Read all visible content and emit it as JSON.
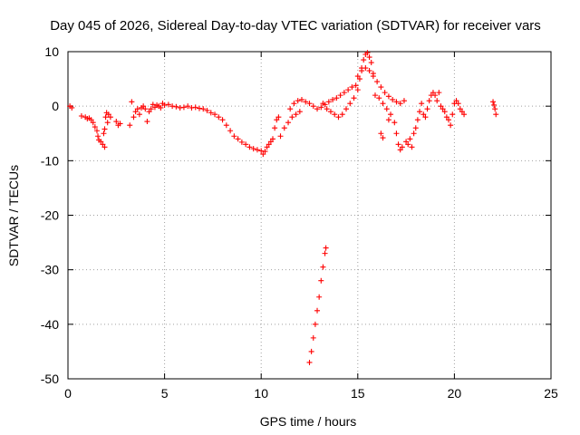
{
  "chart_data": {
    "type": "scatter",
    "title": "Day 045 of 2026, Sidereal Day-to-day VTEC variation (SDTVAR) for receiver vars",
    "xlabel": "GPS time / hours",
    "ylabel": "SDTVAR / TECUs",
    "xlim": [
      0,
      25
    ],
    "ylim": [
      -50,
      10
    ],
    "x_ticks": [
      0,
      5,
      10,
      15,
      20,
      25
    ],
    "y_ticks": [
      10,
      0,
      -10,
      -20,
      -30,
      -40,
      -50
    ],
    "x_tick_labels": [
      "0",
      "5",
      "10",
      "15",
      "20",
      "25"
    ],
    "y_tick_labels": [
      "10",
      "0",
      "-10",
      "-20",
      "-30",
      "-40",
      "-50"
    ],
    "grid": true,
    "marker": "plus",
    "series": [
      {
        "name": "SDTVAR",
        "color": "#ff0000",
        "points": [
          [
            0.1,
            0.0
          ],
          [
            0.2,
            -0.3
          ],
          [
            0.7,
            -1.8
          ],
          [
            0.9,
            -2.0
          ],
          [
            1.0,
            -2.3
          ],
          [
            1.1,
            -2.2
          ],
          [
            1.2,
            -2.5
          ],
          [
            1.3,
            -3.0
          ],
          [
            1.4,
            -3.8
          ],
          [
            1.5,
            -4.5
          ],
          [
            1.55,
            -5.5
          ],
          [
            1.6,
            -6.2
          ],
          [
            1.7,
            -6.5
          ],
          [
            1.8,
            -7.0
          ],
          [
            1.85,
            -5.0
          ],
          [
            1.9,
            -4.2
          ],
          [
            1.9,
            -7.5
          ],
          [
            1.95,
            -2.0
          ],
          [
            2.0,
            -1.2
          ],
          [
            2.05,
            -3.0
          ],
          [
            2.1,
            -1.5
          ],
          [
            2.2,
            -2.0
          ],
          [
            2.5,
            -2.8
          ],
          [
            2.6,
            -3.5
          ],
          [
            2.7,
            -3.2
          ],
          [
            3.2,
            -3.5
          ],
          [
            3.3,
            0.8
          ],
          [
            3.4,
            -2.0
          ],
          [
            3.5,
            -1.0
          ],
          [
            3.6,
            -0.5
          ],
          [
            3.7,
            -1.5
          ],
          [
            3.8,
            -0.3
          ],
          [
            3.9,
            0.0
          ],
          [
            4.0,
            -0.5
          ],
          [
            4.1,
            -2.8
          ],
          [
            4.2,
            -1.0
          ],
          [
            4.3,
            -0.5
          ],
          [
            4.4,
            0.3
          ],
          [
            4.5,
            -0.2
          ],
          [
            4.6,
            0.2
          ],
          [
            4.7,
            0.0
          ],
          [
            4.8,
            -0.3
          ],
          [
            4.9,
            0.5
          ],
          [
            5.0,
            0.2
          ],
          [
            5.2,
            0.3
          ],
          [
            5.4,
            0.0
          ],
          [
            5.6,
            -0.1
          ],
          [
            5.8,
            -0.3
          ],
          [
            6.0,
            -0.2
          ],
          [
            6.2,
            0.0
          ],
          [
            6.4,
            -0.3
          ],
          [
            6.6,
            -0.2
          ],
          [
            6.8,
            -0.4
          ],
          [
            7.0,
            -0.5
          ],
          [
            7.2,
            -0.8
          ],
          [
            7.4,
            -1.2
          ],
          [
            7.6,
            -1.5
          ],
          [
            7.8,
            -2.0
          ],
          [
            8.0,
            -2.5
          ],
          [
            8.2,
            -3.5
          ],
          [
            8.4,
            -4.5
          ],
          [
            8.6,
            -5.5
          ],
          [
            8.8,
            -6.0
          ],
          [
            9.0,
            -6.6
          ],
          [
            9.2,
            -7.0
          ],
          [
            9.4,
            -7.5
          ],
          [
            9.6,
            -7.8
          ],
          [
            9.8,
            -8.0
          ],
          [
            10.0,
            -8.2
          ],
          [
            10.1,
            -8.8
          ],
          [
            10.2,
            -8.3
          ],
          [
            10.3,
            -7.5
          ],
          [
            10.4,
            -7.0
          ],
          [
            10.5,
            -6.5
          ],
          [
            10.6,
            -6.0
          ],
          [
            10.7,
            -4.0
          ],
          [
            10.8,
            -2.5
          ],
          [
            10.9,
            -2.0
          ],
          [
            11.0,
            -5.5
          ],
          [
            11.2,
            -4.0
          ],
          [
            11.4,
            -3.0
          ],
          [
            11.6,
            -2.0
          ],
          [
            11.8,
            -1.5
          ],
          [
            12.0,
            -1.0
          ],
          [
            11.5,
            -0.5
          ],
          [
            11.7,
            0.5
          ],
          [
            11.9,
            1.0
          ],
          [
            12.1,
            1.2
          ],
          [
            12.3,
            0.8
          ],
          [
            12.5,
            0.5
          ],
          [
            12.7,
            0.0
          ],
          [
            12.9,
            -0.5
          ],
          [
            13.1,
            -0.2
          ],
          [
            13.3,
            0.3
          ],
          [
            13.5,
            0.8
          ],
          [
            13.7,
            1.2
          ],
          [
            13.9,
            1.5
          ],
          [
            14.1,
            2.0
          ],
          [
            14.3,
            2.5
          ],
          [
            14.5,
            3.0
          ],
          [
            14.7,
            3.5
          ],
          [
            14.9,
            3.8
          ],
          [
            13.2,
            0.5
          ],
          [
            13.4,
            -0.5
          ],
          [
            13.6,
            -1.0
          ],
          [
            13.8,
            -1.5
          ],
          [
            14.0,
            -2.0
          ],
          [
            14.2,
            -1.5
          ],
          [
            14.4,
            -0.5
          ],
          [
            14.6,
            0.5
          ],
          [
            14.8,
            1.5
          ],
          [
            15.0,
            3.0
          ],
          [
            15.1,
            5.0
          ],
          [
            15.2,
            7.0
          ],
          [
            15.3,
            8.5
          ],
          [
            15.4,
            9.5
          ],
          [
            15.5,
            9.8
          ],
          [
            15.6,
            9.0
          ],
          [
            15.7,
            8.0
          ],
          [
            15.8,
            6.0
          ],
          [
            15.0,
            5.5
          ],
          [
            15.2,
            6.5
          ],
          [
            15.4,
            7.0
          ],
          [
            15.6,
            6.5
          ],
          [
            15.8,
            5.5
          ],
          [
            16.0,
            4.5
          ],
          [
            16.2,
            3.5
          ],
          [
            16.4,
            2.5
          ],
          [
            16.6,
            1.8
          ],
          [
            16.8,
            1.2
          ],
          [
            17.0,
            0.8
          ],
          [
            17.2,
            0.5
          ],
          [
            17.4,
            1.0
          ],
          [
            15.9,
            2.0
          ],
          [
            16.1,
            1.5
          ],
          [
            16.3,
            0.5
          ],
          [
            16.5,
            -0.5
          ],
          [
            16.7,
            -1.5
          ],
          [
            16.9,
            -3.0
          ],
          [
            17.0,
            -5.0
          ],
          [
            17.1,
            -7.0
          ],
          [
            17.2,
            -8.0
          ],
          [
            17.3,
            -7.5
          ],
          [
            17.5,
            -6.5
          ],
          [
            16.2,
            -5.0
          ],
          [
            16.3,
            -5.8
          ],
          [
            16.6,
            -2.5
          ],
          [
            17.6,
            -7.0
          ],
          [
            17.7,
            -6.0
          ],
          [
            17.8,
            -7.5
          ],
          [
            17.9,
            -5.0
          ],
          [
            18.0,
            -4.0
          ],
          [
            18.1,
            -2.5
          ],
          [
            18.2,
            -1.0
          ],
          [
            18.3,
            0.5
          ],
          [
            18.4,
            -1.5
          ],
          [
            18.5,
            -2.0
          ],
          [
            18.6,
            -0.5
          ],
          [
            18.7,
            1.0
          ],
          [
            18.8,
            2.0
          ],
          [
            18.9,
            2.5
          ],
          [
            19.0,
            2.0
          ],
          [
            19.1,
            1.0
          ],
          [
            19.2,
            2.5
          ],
          [
            19.3,
            0.0
          ],
          [
            19.4,
            -0.5
          ],
          [
            19.5,
            -1.0
          ],
          [
            19.6,
            -2.0
          ],
          [
            19.7,
            -2.5
          ],
          [
            19.8,
            -3.5
          ],
          [
            19.9,
            -1.5
          ],
          [
            20.0,
            0.5
          ],
          [
            20.1,
            1.0
          ],
          [
            20.2,
            0.5
          ],
          [
            20.3,
            -0.5
          ],
          [
            20.4,
            -1.0
          ],
          [
            20.5,
            -1.5
          ],
          [
            22.0,
            0.8
          ],
          [
            22.05,
            0.2
          ],
          [
            22.1,
            -0.5
          ],
          [
            22.15,
            -1.5
          ],
          [
            12.5,
            -47.0
          ],
          [
            12.6,
            -45.0
          ],
          [
            12.7,
            -42.5
          ],
          [
            12.8,
            -40.0
          ],
          [
            12.9,
            -37.5
          ],
          [
            13.0,
            -35.0
          ],
          [
            13.1,
            -32.0
          ],
          [
            13.2,
            -29.5
          ],
          [
            13.3,
            -27.0
          ],
          [
            13.35,
            -26.0
          ]
        ]
      }
    ]
  }
}
